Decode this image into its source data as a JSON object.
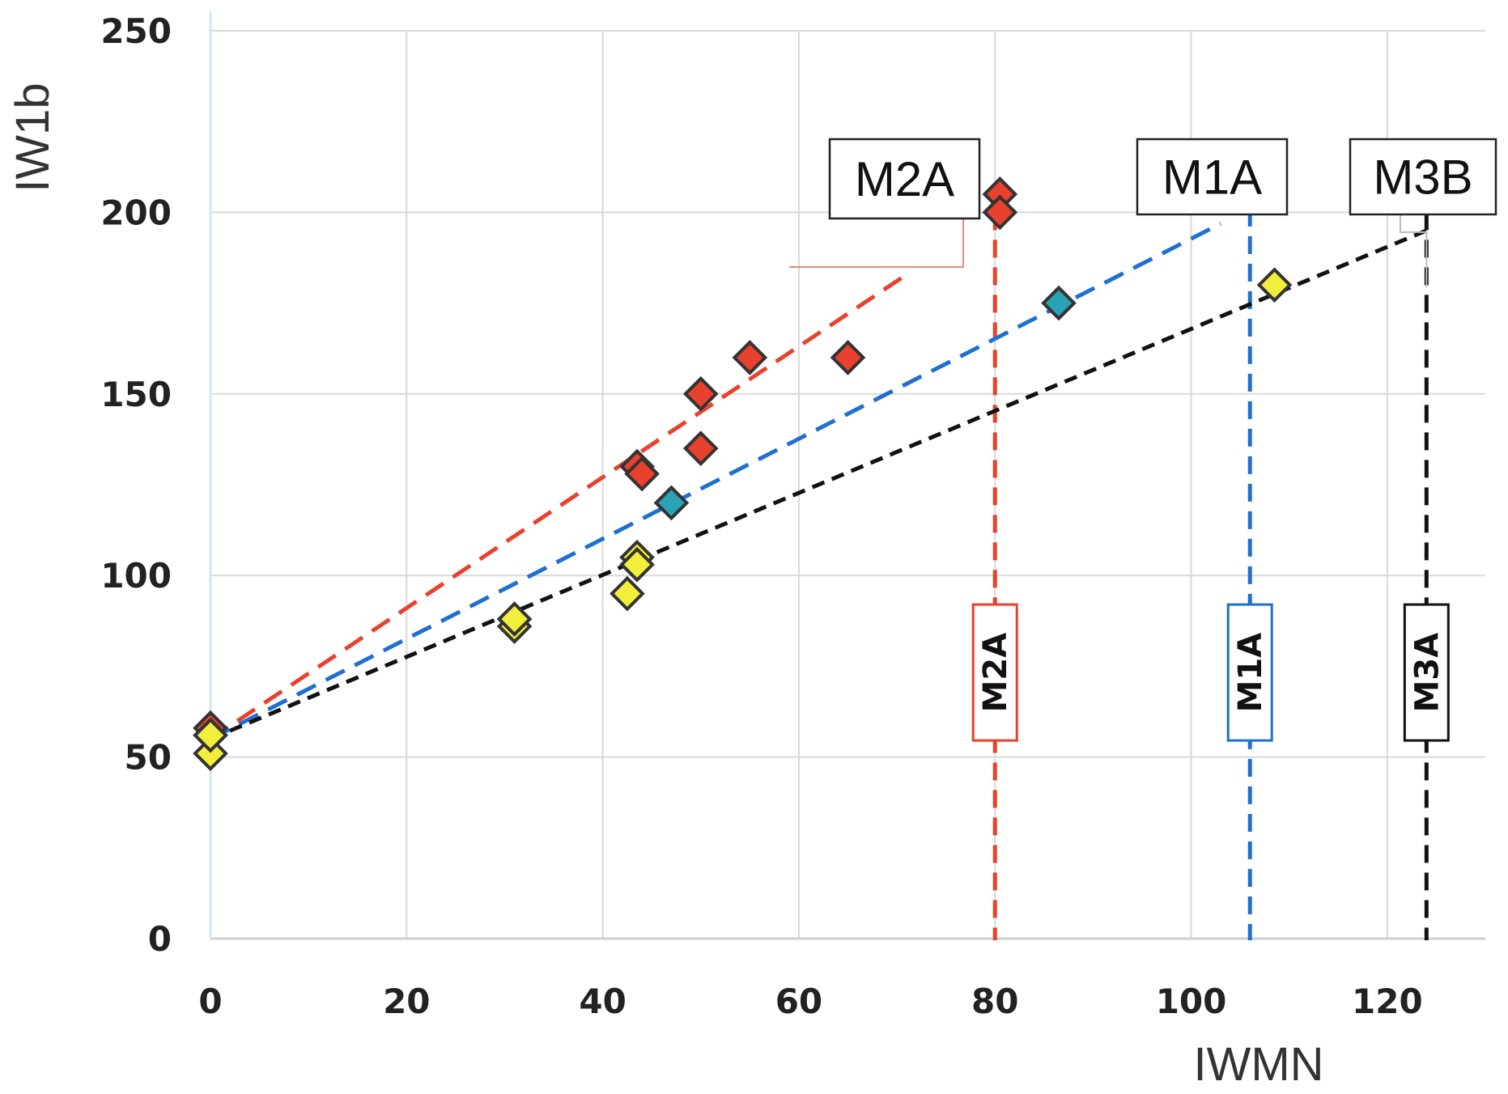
{
  "chart_data": {
    "type": "scatter",
    "title": "",
    "xlabel": "IWMN",
    "ylabel": "IW1b",
    "xlim": [
      0,
      130
    ],
    "ylim": [
      0,
      250
    ],
    "x_ticks": [
      "0",
      "20",
      "40",
      "60",
      "80",
      "100",
      "120"
    ],
    "y_ticks": [
      "0",
      "50",
      "100",
      "150",
      "200",
      "250"
    ],
    "grid": true,
    "series": [
      {
        "name": "M2A",
        "color": "#e8412d",
        "marker_color": "#e8412d",
        "points": [
          {
            "x": 0,
            "y": 58
          },
          {
            "x": 43.5,
            "y": 130
          },
          {
            "x": 44,
            "y": 128
          },
          {
            "x": 50,
            "y": 150
          },
          {
            "x": 50,
            "y": 135
          },
          {
            "x": 55,
            "y": 160
          },
          {
            "x": 65,
            "y": 160
          },
          {
            "x": 80.5,
            "y": 205
          },
          {
            "x": 80.5,
            "y": 200
          }
        ],
        "trend": {
          "x": [
            0,
            80.5
          ],
          "y": [
            55,
            200
          ]
        },
        "trend_visible_x": [
          0,
          71
        ]
      },
      {
        "name": "M1A",
        "color": "#1f6fd1",
        "marker_color": "#29a3b5",
        "points": [
          {
            "x": 0,
            "y": 56
          },
          {
            "x": 47,
            "y": 120
          },
          {
            "x": 86.5,
            "y": 175
          }
        ],
        "trend": {
          "x": [
            0,
            106
          ],
          "y": [
            55,
            201
          ]
        },
        "trend_visible_x": [
          0,
          103
        ]
      },
      {
        "name": "M3",
        "color": "#111111",
        "marker_color": "#f2ee3c",
        "points": [
          {
            "x": 0,
            "y": 51
          },
          {
            "x": 0,
            "y": 56
          },
          {
            "x": 31,
            "y": 86
          },
          {
            "x": 31,
            "y": 88
          },
          {
            "x": 42.5,
            "y": 95
          },
          {
            "x": 43.5,
            "y": 105
          },
          {
            "x": 43.5,
            "y": 103
          },
          {
            "x": 108.5,
            "y": 180
          }
        ],
        "trend": {
          "x": [
            0,
            124
          ],
          "y": [
            55,
            195
          ]
        },
        "trend_visible_x": [
          0,
          124
        ]
      }
    ],
    "vertical_markers": [
      {
        "label": "M2A",
        "x": 80,
        "color": "#e8412d"
      },
      {
        "label": "M1A",
        "x": 106,
        "color": "#1f6fd1"
      },
      {
        "label": "M3A",
        "x": 124,
        "color": "#111111"
      }
    ],
    "annotations": [
      {
        "label": "M2A",
        "anchor_x": 80.5,
        "anchor_y": 200
      },
      {
        "label": "M1A",
        "anchor_x": 103,
        "anchor_y": 201
      },
      {
        "label": "M3B",
        "anchor_x": 124,
        "anchor_y": 195
      }
    ]
  }
}
